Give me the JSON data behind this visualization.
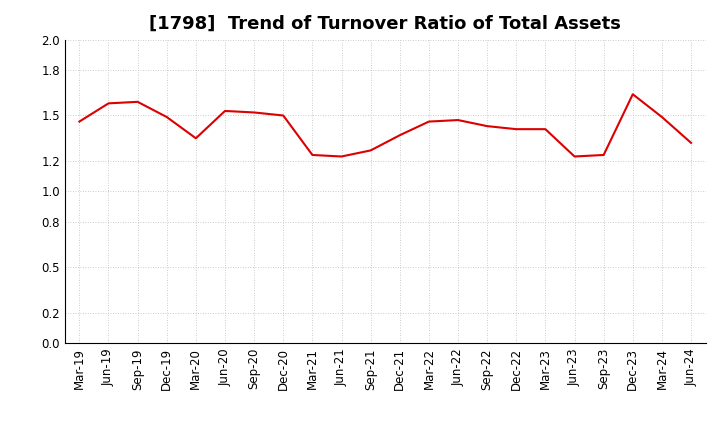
{
  "title": "[1798]  Trend of Turnover Ratio of Total Assets",
  "labels": [
    "Mar-19",
    "Jun-19",
    "Sep-19",
    "Dec-19",
    "Mar-20",
    "Jun-20",
    "Sep-20",
    "Dec-20",
    "Mar-21",
    "Jun-21",
    "Sep-21",
    "Dec-21",
    "Mar-22",
    "Jun-22",
    "Sep-22",
    "Dec-22",
    "Mar-23",
    "Jun-23",
    "Sep-23",
    "Dec-23",
    "Mar-24",
    "Jun-24"
  ],
  "values": [
    1.46,
    1.58,
    1.59,
    1.49,
    1.35,
    1.53,
    1.52,
    1.5,
    1.24,
    1.23,
    1.27,
    1.37,
    1.46,
    1.47,
    1.43,
    1.41,
    1.41,
    1.23,
    1.24,
    1.64,
    1.49,
    1.32
  ],
  "line_color": "#dd0000",
  "line_width": 1.5,
  "ylim": [
    0.0,
    2.0
  ],
  "yticks": [
    0.0,
    0.2,
    0.5,
    0.8,
    1.0,
    1.2,
    1.5,
    1.8,
    2.0
  ],
  "bg_color": "#ffffff",
  "grid_color": "#bbbbbb",
  "title_fontsize": 13,
  "tick_fontsize": 8.5
}
